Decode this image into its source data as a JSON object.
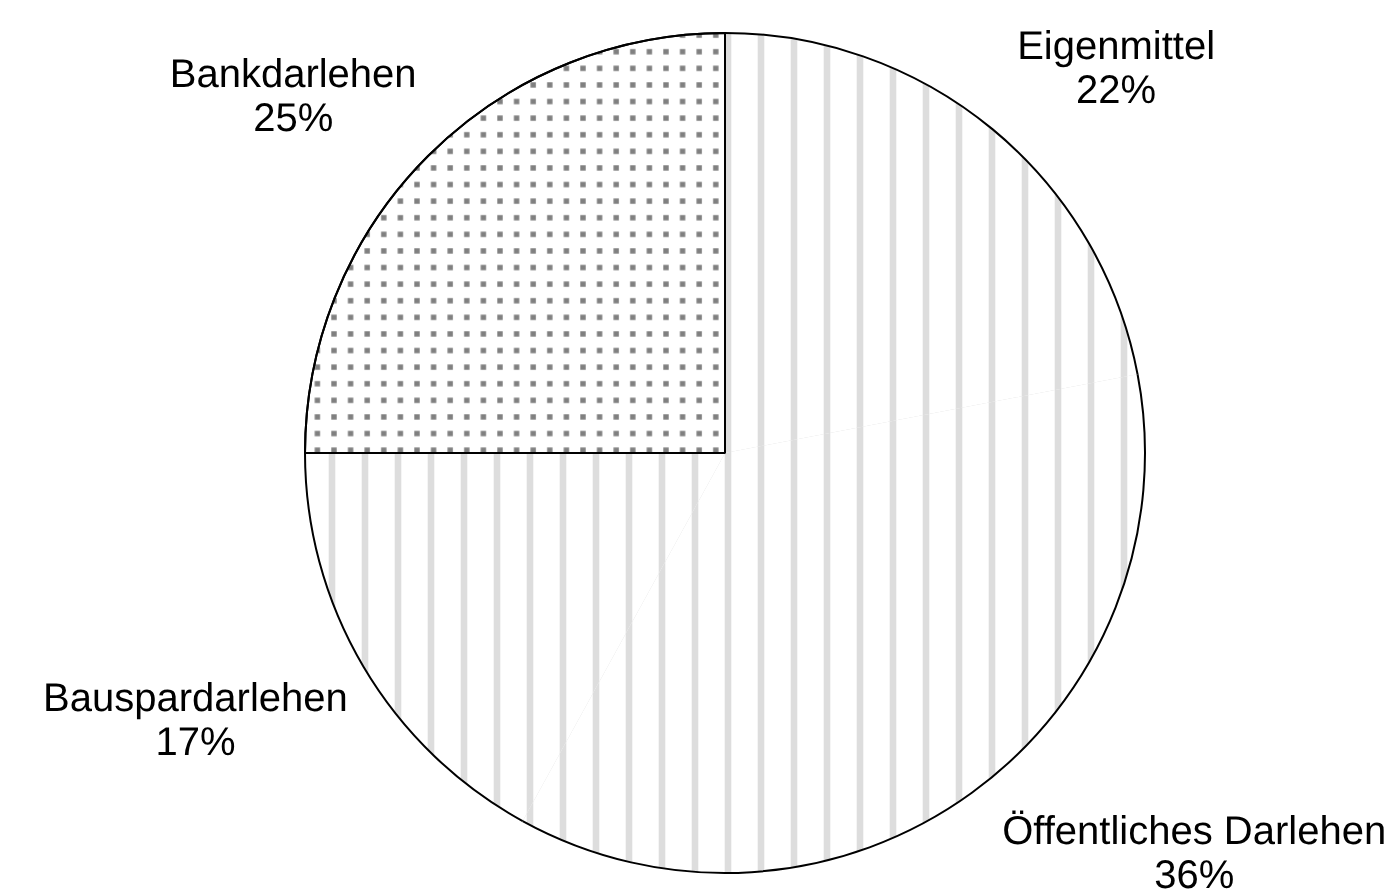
{
  "chart_data": {
    "type": "pie",
    "categories": [
      "Eigenmittel",
      "Öffentliches Darlehen",
      "Bauspardarlehen",
      "Bankdarlehen"
    ],
    "values": [
      22,
      36,
      17,
      25
    ],
    "value_labels": [
      "22%",
      "36%",
      "17%",
      "25%"
    ],
    "colors": [
      "#dddddd",
      "#dddddd",
      "#dddddd",
      "#808080"
    ]
  }
}
